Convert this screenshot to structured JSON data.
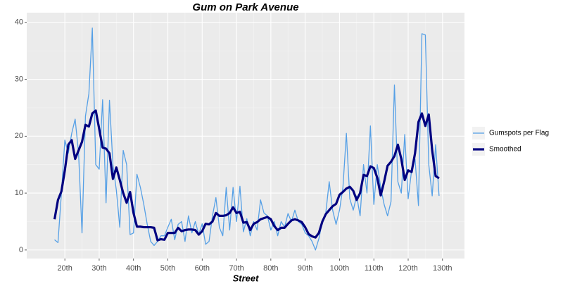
{
  "chart_data": {
    "type": "line",
    "title": "Gum on Park Avenue",
    "x_label": "Street",
    "x": [
      17,
      18,
      19,
      20,
      21,
      22,
      23,
      24,
      25,
      26,
      27,
      28,
      29,
      30,
      31,
      32,
      33,
      34,
      35,
      36,
      37,
      38,
      39,
      40,
      41,
      42,
      43,
      44,
      45,
      46,
      47,
      48,
      49,
      50,
      51,
      52,
      53,
      54,
      55,
      56,
      57,
      58,
      59,
      60,
      61,
      62,
      63,
      64,
      65,
      66,
      67,
      68,
      69,
      70,
      71,
      72,
      73,
      74,
      75,
      76,
      77,
      78,
      79,
      80,
      81,
      82,
      83,
      84,
      85,
      86,
      87,
      88,
      89,
      90,
      91,
      92,
      93,
      94,
      95,
      96,
      97,
      98,
      99,
      100,
      101,
      102,
      103,
      104,
      105,
      106,
      107,
      108,
      109,
      110,
      111,
      112,
      113,
      114,
      115,
      116,
      117,
      118,
      119,
      120,
      121,
      122,
      123,
      124,
      125,
      126,
      127,
      128,
      129
    ],
    "series": [
      {
        "name": "Gumspots per Flag",
        "color": "#56a0e6",
        "values": [
          1.8,
          1.3,
          10,
          19.3,
          17,
          20.5,
          23,
          17,
          3,
          23.5,
          27.5,
          39,
          15,
          14.2,
          26.4,
          8.3,
          26.3,
          15,
          10.5,
          4,
          17.5,
          15,
          2.7,
          3,
          13.3,
          11,
          8,
          4.5,
          1.5,
          0.8,
          1.5,
          2.5,
          2.5,
          4,
          5.4,
          1.8,
          4.5,
          5,
          1.5,
          6,
          3,
          5,
          2.7,
          4.6,
          1,
          1.5,
          6,
          9.2,
          4,
          2.5,
          11,
          3.5,
          11,
          5,
          11.2,
          3.2,
          5.5,
          2.5,
          5,
          3.5,
          8.8,
          6.5,
          6,
          3.5,
          5,
          2.5,
          5,
          4,
          6.4,
          5,
          7,
          5,
          4.5,
          3,
          2.5,
          1.5,
          0,
          2,
          5,
          6.5,
          12,
          7,
          4.5,
          7,
          11,
          20.5,
          9,
          7,
          9.5,
          6,
          15,
          10,
          21.8,
          8,
          15,
          11,
          8,
          6,
          8.5,
          29,
          12,
          10,
          20.3,
          9,
          14,
          16,
          7.8,
          38,
          37.8,
          15,
          9.5,
          18.5,
          9.5
        ]
      },
      {
        "name": "Smoothed",
        "color": "#000080",
        "values": [
          5.4,
          8.8,
          10.3,
          14,
          18.5,
          19.3,
          16,
          17.5,
          19,
          22,
          21.7,
          24,
          24.5,
          21.3,
          18,
          17.8,
          17,
          12.5,
          14.5,
          12.3,
          10,
          8.3,
          10.2,
          6.5,
          4.1,
          4.1,
          4,
          4,
          4,
          3.9,
          1.7,
          1.9,
          1.8,
          3,
          3,
          3,
          3.9,
          3.3,
          3.5,
          3.6,
          3.6,
          3.5,
          2.7,
          3.3,
          4.6,
          4.5,
          5,
          6.5,
          6,
          6,
          6.1,
          6.5,
          7.5,
          6.5,
          6.7,
          4.8,
          4.9,
          3.5,
          4.6,
          4.9,
          5.4,
          5.6,
          5.8,
          5.4,
          4.2,
          3.5,
          3.9,
          3.9,
          4.6,
          5.2,
          5.4,
          5.2,
          4.9,
          4,
          2.8,
          2.4,
          2.2,
          3,
          5,
          6.3,
          7,
          7.7,
          8.1,
          9.7,
          10.2,
          10.8,
          11.1,
          10.4,
          8.8,
          10,
          13.2,
          13,
          14.7,
          14.4,
          12.7,
          9.6,
          12,
          14.8,
          15.5,
          16.5,
          18.5,
          16,
          12.3,
          14,
          13.7,
          17,
          22.5,
          24,
          21.8,
          23.8,
          17.5,
          13,
          12.6
        ]
      }
    ],
    "xlim": [
      8.9,
      136.4
    ],
    "xticks": [
      {
        "value": 20,
        "label": "20th"
      },
      {
        "value": 30,
        "label": "30th"
      },
      {
        "value": 40,
        "label": "40th"
      },
      {
        "value": 50,
        "label": "50th"
      },
      {
        "value": 60,
        "label": "60th"
      },
      {
        "value": 70,
        "label": "70th"
      },
      {
        "value": 80,
        "label": "80th"
      },
      {
        "value": 90,
        "label": "90th"
      },
      {
        "value": 100,
        "label": "100th"
      },
      {
        "value": 110,
        "label": "110th"
      },
      {
        "value": 120,
        "label": "120th"
      },
      {
        "value": 130,
        "label": "130th"
      }
    ],
    "ylim": [
      -1.5,
      41.7
    ],
    "yticks": [
      0,
      10,
      20,
      30,
      40
    ],
    "grid": true,
    "legend": "right"
  }
}
